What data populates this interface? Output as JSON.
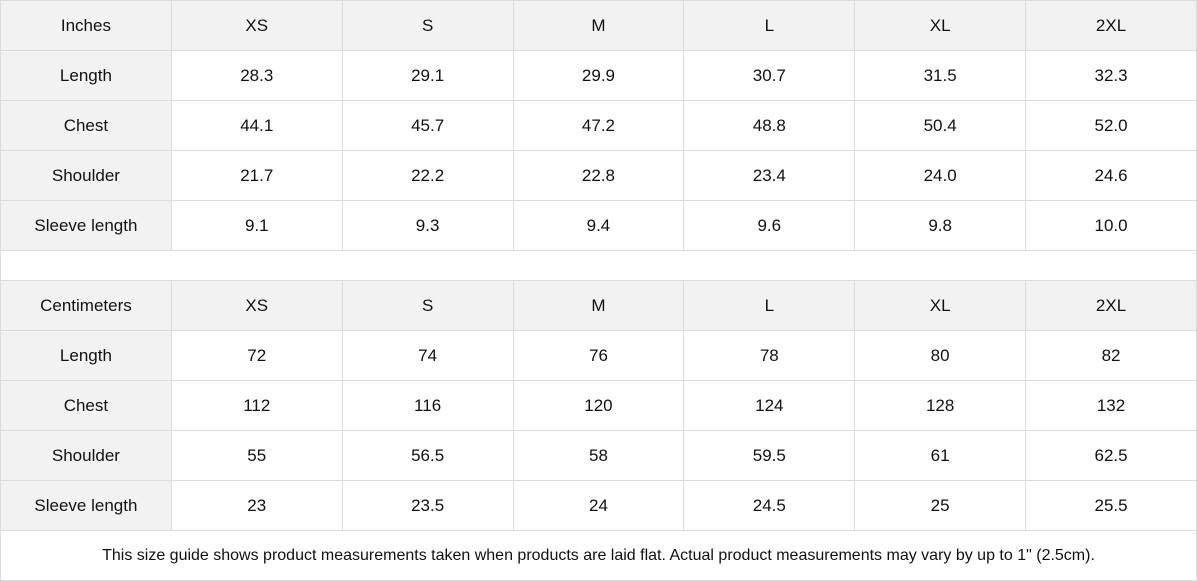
{
  "inches": {
    "header": [
      "Inches",
      "XS",
      "S",
      "M",
      "L",
      "XL",
      "2XL"
    ],
    "rows": [
      {
        "label": "Length",
        "values": [
          "28.3",
          "29.1",
          "29.9",
          "30.7",
          "31.5",
          "32.3"
        ]
      },
      {
        "label": "Chest",
        "values": [
          "44.1",
          "45.7",
          "47.2",
          "48.8",
          "50.4",
          "52.0"
        ]
      },
      {
        "label": "Shoulder",
        "values": [
          "21.7",
          "22.2",
          "22.8",
          "23.4",
          "24.0",
          "24.6"
        ]
      },
      {
        "label": "Sleeve length",
        "values": [
          "9.1",
          "9.3",
          "9.4",
          "9.6",
          "9.8",
          "10.0"
        ]
      }
    ]
  },
  "centimeters": {
    "header": [
      "Centimeters",
      "XS",
      "S",
      "M",
      "L",
      "XL",
      "2XL"
    ],
    "rows": [
      {
        "label": "Length",
        "values": [
          "72",
          "74",
          "76",
          "78",
          "80",
          "82"
        ]
      },
      {
        "label": "Chest",
        "values": [
          "112",
          "116",
          "120",
          "124",
          "128",
          "132"
        ]
      },
      {
        "label": "Shoulder",
        "values": [
          "55",
          "56.5",
          "58",
          "59.5",
          "61",
          "62.5"
        ]
      },
      {
        "label": "Sleeve length",
        "values": [
          "23",
          "23.5",
          "24",
          "24.5",
          "25",
          "25.5"
        ]
      }
    ]
  },
  "note": "This size guide shows product measurements taken when products are laid flat.  Actual product measurements may vary by up to 1\" (2.5cm).",
  "colors": {
    "header_bg": "#f2f2f2",
    "border": "#dcdcdc"
  }
}
